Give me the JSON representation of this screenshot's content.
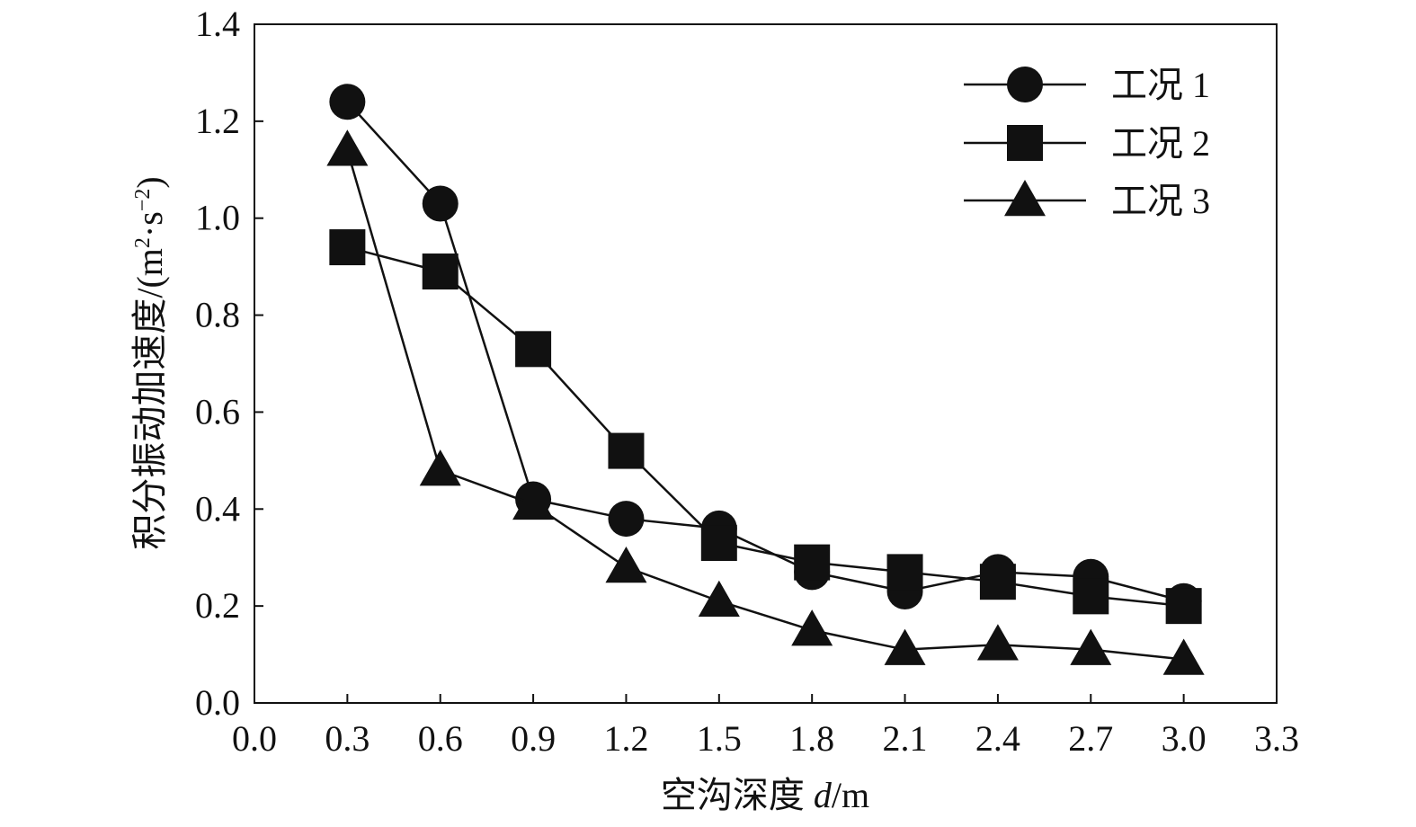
{
  "chart_data": {
    "type": "line",
    "xlabel_main": "空沟深度 ",
    "xlabel_var": "d",
    "xlabel_unit": "/m",
    "ylabel_main": "积分振动加速度/(m",
    "ylabel_sup1": "2",
    "ylabel_mid": "·s",
    "ylabel_sup2": "−2",
    "ylabel_end": ")",
    "xlim": [
      0.0,
      3.3
    ],
    "ylim": [
      0.0,
      1.4
    ],
    "x_ticks": [
      "0.0",
      "0.3",
      "0.6",
      "0.9",
      "1.2",
      "1.5",
      "1.8",
      "2.1",
      "2.4",
      "2.7",
      "3.0",
      "3.3"
    ],
    "y_ticks": [
      "0.0",
      "0.2",
      "0.4",
      "0.6",
      "0.8",
      "1.0",
      "1.2",
      "1.4"
    ],
    "grid": false,
    "legend_position": "top-right",
    "x": [
      0.3,
      0.6,
      0.9,
      1.2,
      1.5,
      1.8,
      2.1,
      2.4,
      2.7,
      3.0
    ],
    "series": [
      {
        "name": "工况 1",
        "marker": "circle",
        "values": [
          1.24,
          1.03,
          0.42,
          0.38,
          0.36,
          0.27,
          0.23,
          0.27,
          0.26,
          0.21
        ]
      },
      {
        "name": "工况 2",
        "marker": "square",
        "values": [
          0.94,
          0.89,
          0.73,
          0.52,
          0.33,
          0.29,
          0.27,
          0.25,
          0.22,
          0.2
        ]
      },
      {
        "name": "工况 3",
        "marker": "triangle",
        "values": [
          1.14,
          0.48,
          0.41,
          0.28,
          0.21,
          0.15,
          0.11,
          0.12,
          0.11,
          0.09
        ]
      }
    ],
    "colors": {
      "line": "#111111",
      "marker": "#111111",
      "axis": "#111111"
    }
  }
}
